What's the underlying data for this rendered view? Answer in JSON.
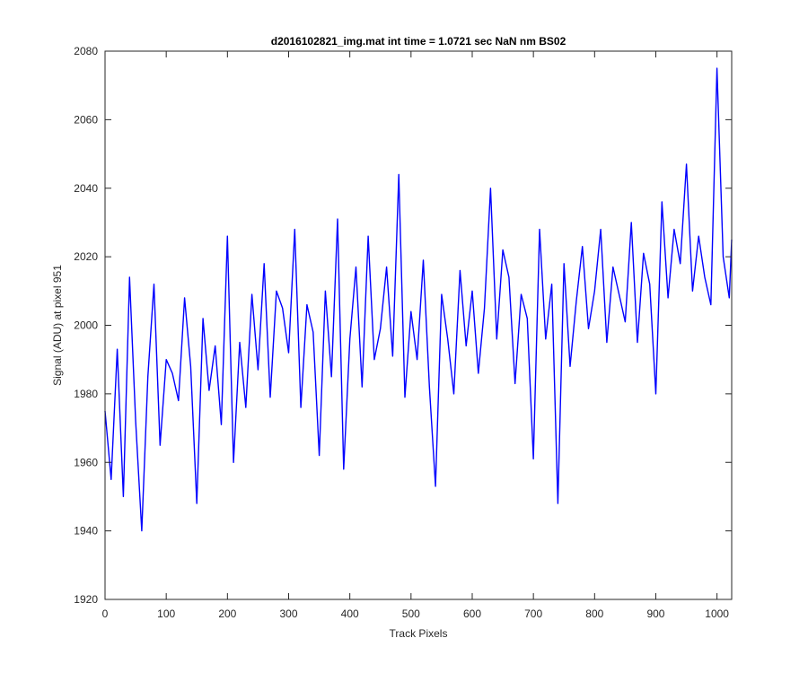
{
  "chart_data": {
    "type": "line",
    "title": "d2016102821_img.mat int time = 1.0721 sec  NaN nm BS02",
    "xlabel": "Track Pixels",
    "ylabel": "Signal (ADU) at pixel 951",
    "xlim": [
      0,
      1024
    ],
    "ylim": [
      1920,
      2080
    ],
    "xticks": [
      "0",
      "100",
      "200",
      "300",
      "400",
      "500",
      "600",
      "700",
      "800",
      "900",
      "1000"
    ],
    "yticks": [
      "1920",
      "1940",
      "1960",
      "1980",
      "2000",
      "2020",
      "2040",
      "2060",
      "2080"
    ],
    "grid": false,
    "series": [
      {
        "color": "#0000ff",
        "x": [
          0,
          10,
          20,
          30,
          40,
          50,
          60,
          70,
          80,
          90,
          100,
          110,
          120,
          130,
          140,
          150,
          160,
          170,
          180,
          190,
          200,
          210,
          220,
          230,
          240,
          250,
          260,
          270,
          280,
          290,
          300,
          310,
          320,
          330,
          340,
          350,
          360,
          370,
          380,
          390,
          400,
          410,
          420,
          430,
          440,
          450,
          460,
          470,
          480,
          490,
          500,
          510,
          520,
          530,
          540,
          550,
          560,
          570,
          580,
          590,
          600,
          610,
          620,
          630,
          640,
          650,
          660,
          670,
          680,
          690,
          700,
          710,
          720,
          730,
          740,
          750,
          760,
          770,
          780,
          790,
          800,
          810,
          820,
          830,
          840,
          850,
          860,
          870,
          880,
          890,
          900,
          910,
          920,
          930,
          940,
          950,
          960,
          970,
          980,
          990,
          1000,
          1010,
          1020,
          1024
        ],
        "y": [
          1975,
          1955,
          1993,
          1950,
          2014,
          1972,
          1940,
          1985,
          2012,
          1965,
          1990,
          1986,
          1978,
          2008,
          1988,
          1948,
          2002,
          1981,
          1994,
          1971,
          2026,
          1960,
          1995,
          1976,
          2009,
          1987,
          2018,
          1979,
          2010,
          2005,
          1992,
          2028,
          1976,
          2006,
          1998,
          1962,
          2010,
          1985,
          2031,
          1958,
          1996,
          2017,
          1982,
          2026,
          1990,
          1999,
          2017,
          1991,
          2044,
          1979,
          2004,
          1990,
          2019,
          1982,
          1953,
          2009,
          1996,
          1980,
          2016,
          1994,
          2010,
          1986,
          2005,
          2040,
          1996,
          2022,
          2014,
          1983,
          2009,
          2002,
          1961,
          2028,
          1996,
          2012,
          1948,
          2018,
          1988,
          2007,
          2023,
          1999,
          2010,
          2028,
          1995,
          2017,
          2009,
          2001,
          2030,
          1995,
          2021,
          2012,
          1980,
          2036,
          2008,
          2028,
          2018,
          2047,
          2010,
          2026,
          2014,
          2006,
          2075,
          2020,
          2008,
          2025
        ]
      }
    ]
  }
}
